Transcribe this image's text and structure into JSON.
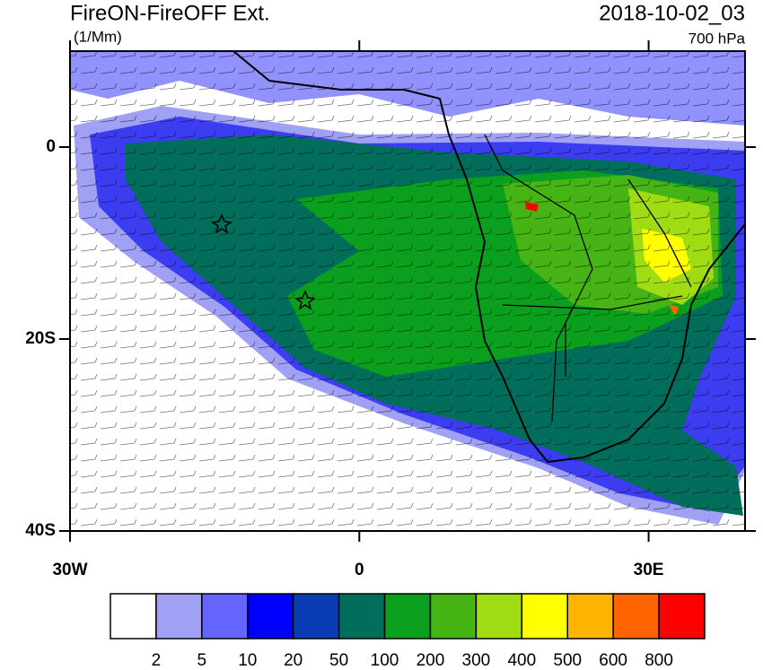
{
  "title": "FireON-FireOFF Ext.",
  "units": "(1/Mm)",
  "time": "2018-10-02_03",
  "level": "700 hPa",
  "xlim": [
    -30,
    40
  ],
  "ylim": [
    -40,
    10
  ],
  "xticks": [
    {
      "value": -30,
      "label": "30W"
    },
    0,
    {
      "value": 30,
      "label": "30E"
    }
  ],
  "yticks": [
    0,
    {
      "value": -20,
      "label": "20S"
    },
    {
      "value": -40,
      "label": "40S"
    }
  ],
  "colorbar": {
    "levels": [
      2,
      5,
      10,
      20,
      50,
      100,
      200,
      300,
      400,
      500,
      600,
      800
    ],
    "colors": [
      "#ffffff",
      "#a0a0f5",
      "#6464ff",
      "#0000ff",
      "#0a3cb4",
      "#006e5a",
      "#0aa01e",
      "#46b414",
      "#a0dc14",
      "#ffff00",
      "#ffb400",
      "#ff6400",
      "#ff0000"
    ]
  }
}
